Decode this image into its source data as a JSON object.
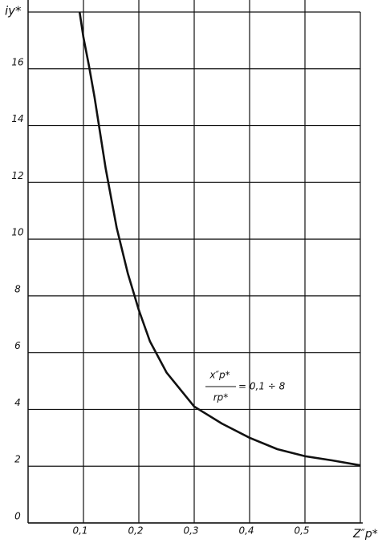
{
  "chart_data": {
    "type": "line",
    "x_label": "Z″p*",
    "y_label": "iy*",
    "annotation": {
      "numerator": "x″p*",
      "denominator": "rp*",
      "rhs": "= 0,1 ÷ 8"
    },
    "x": [
      0.093,
      0.1,
      0.11,
      0.12,
      0.14,
      0.16,
      0.18,
      0.2,
      0.22,
      0.25,
      0.3,
      0.35,
      0.4,
      0.45,
      0.5,
      0.55,
      0.6
    ],
    "series": [
      {
        "color": "#111111",
        "values": [
          18,
          17.1,
          16.1,
          15,
          12.5,
          10.4,
          8.8,
          7.5,
          6.4,
          5.3,
          4.1,
          3.5,
          3.0,
          2.6,
          2.35,
          2.2,
          2.03
        ]
      }
    ],
    "xlim": [
      0,
      0.6
    ],
    "ylim": [
      0,
      18
    ],
    "xticks": [
      {
        "value": 0.1,
        "label": "0,1"
      },
      {
        "value": 0.2,
        "label": "0,2"
      },
      {
        "value": 0.3,
        "label": "0,3"
      },
      {
        "value": 0.4,
        "label": "0,4"
      },
      {
        "value": 0.5,
        "label": "0,5"
      }
    ],
    "yticks": [
      0,
      2,
      4,
      6,
      8,
      10,
      12,
      14,
      16
    ],
    "grid": true
  }
}
